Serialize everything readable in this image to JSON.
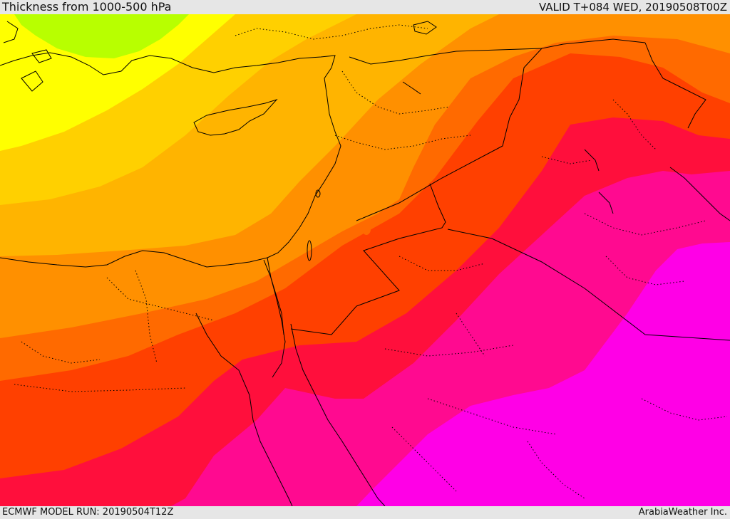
{
  "header": {
    "title": "Thickness from 1000-500 hPa",
    "valid_time": "VALID T+084 WED, 20190508T00Z"
  },
  "footer": {
    "model_run": "ECMWF MODEL RUN: 20190504T12Z",
    "provider": "ArabiaWeather Inc."
  },
  "map": {
    "field": "thickness",
    "palette": [
      "#b8ff00",
      "#ffff00",
      "#ffd000",
      "#ffb400",
      "#ff9000",
      "#ff6a00",
      "#ff4000",
      "#ff0f3c",
      "#ff0a90",
      "#ff00e6"
    ],
    "coastline_color": "#000000",
    "border_style": "dotted"
  }
}
